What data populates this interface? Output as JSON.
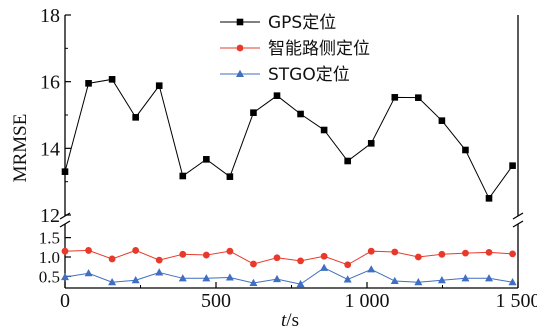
{
  "chart_data": {
    "type": "line",
    "xlabel_var": "t",
    "xlabel_unit": "/s",
    "ylabel": "MRMSE",
    "xlim": [
      0,
      1500
    ],
    "x_ticks": [
      "0",
      "500",
      "1 000",
      "1 500"
    ],
    "x_tick_values": [
      0,
      500,
      1000,
      1500
    ],
    "y_upper": {
      "range": [
        12,
        18
      ],
      "ticks": [
        "12",
        "14",
        "16",
        "18"
      ],
      "tick_values": [
        12,
        14,
        16,
        18
      ]
    },
    "y_lower": {
      "range": [
        0.2,
        1.8
      ],
      "ticks": [
        "0.5",
        "1.0",
        "1.5"
      ],
      "tick_values": [
        0.5,
        1.0,
        1.5
      ]
    },
    "axis_break": true,
    "legend_position": "top-center",
    "x": [
      0,
      78,
      156,
      234,
      312,
      390,
      468,
      546,
      624,
      702,
      780,
      858,
      936,
      1014,
      1092,
      1170,
      1248,
      1326,
      1404,
      1482
    ],
    "series": [
      {
        "name": "GPS定位",
        "color": "#000000",
        "marker": "square",
        "panel": "upper",
        "values": [
          13.3,
          15.95,
          16.07,
          14.93,
          15.88,
          13.17,
          13.67,
          13.15,
          15.07,
          15.58,
          15.03,
          14.55,
          13.62,
          14.15,
          15.53,
          15.52,
          14.83,
          13.95,
          12.5,
          13.48
        ]
      },
      {
        "name": "智能路侧定位",
        "color": "#e8392b",
        "marker": "circle",
        "panel": "lower",
        "values": [
          1.15,
          1.17,
          0.95,
          1.17,
          0.92,
          1.07,
          1.05,
          1.15,
          0.82,
          0.98,
          0.9,
          1.02,
          0.8,
          1.15,
          1.13,
          1.0,
          1.07,
          1.1,
          1.12,
          1.08
        ]
      },
      {
        "name": "STGO定位",
        "color": "#3f6ec2",
        "marker": "triangle",
        "panel": "lower",
        "values": [
          0.48,
          0.58,
          0.35,
          0.4,
          0.6,
          0.45,
          0.45,
          0.47,
          0.33,
          0.43,
          0.3,
          0.72,
          0.42,
          0.68,
          0.38,
          0.35,
          0.4,
          0.45,
          0.45,
          0.35
        ]
      }
    ]
  }
}
